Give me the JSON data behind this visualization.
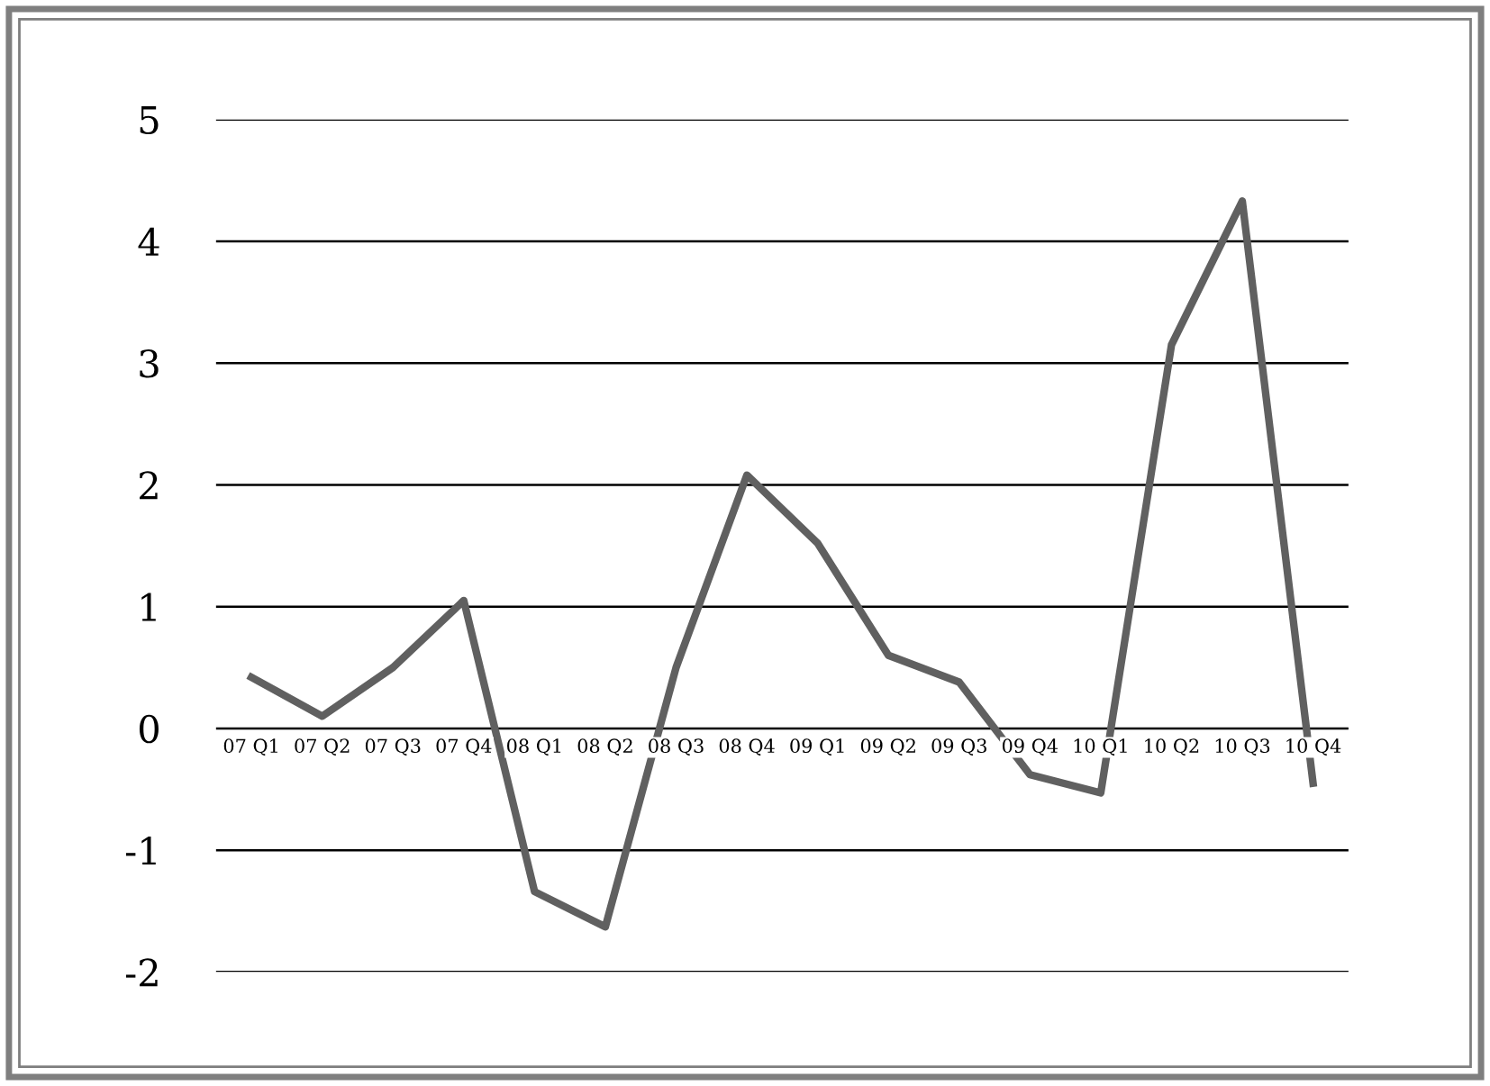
{
  "chart_data": {
    "type": "line",
    "categories": [
      "07 Q1",
      "07 Q2",
      "07 Q3",
      "07 Q4",
      "08 Q1",
      "08 Q2",
      "08 Q3",
      "08 Q4",
      "09 Q1",
      "09 Q2",
      "09 Q3",
      "09 Q4",
      "10 Q1",
      "10 Q2",
      "10 Q3",
      "10 Q4"
    ],
    "series": [
      {
        "color": "#606060",
        "values": [
          0.42,
          0.1,
          0.5,
          1.05,
          -1.34,
          -1.63,
          0.5,
          2.08,
          1.52,
          0.6,
          0.38,
          -0.38,
          -0.53,
          3.15,
          4.33,
          -0.45
        ]
      }
    ],
    "ylim": [
      -2,
      5
    ],
    "yticks": [
      -2,
      -1,
      0,
      1,
      2,
      3,
      4,
      5
    ],
    "grid": "y",
    "legend": false,
    "marker": "none",
    "line_style": "solid"
  }
}
